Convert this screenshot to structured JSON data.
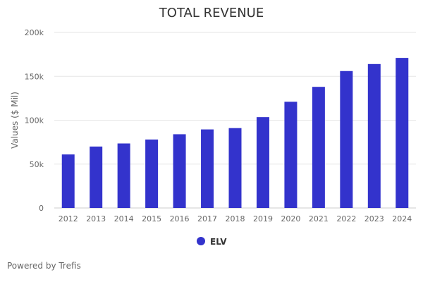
{
  "chart_data": {
    "type": "bar",
    "title": "TOTAL REVENUE",
    "xlabel": "",
    "ylabel": "Values ($ Mil)",
    "categories": [
      "2012",
      "2013",
      "2014",
      "2015",
      "2016",
      "2017",
      "2018",
      "2019",
      "2020",
      "2021",
      "2022",
      "2023",
      "2024"
    ],
    "series": [
      {
        "name": "ELV",
        "color": "#3333cc",
        "values": [
          61000,
          70000,
          73500,
          78000,
          84000,
          89500,
          91000,
          103500,
          121000,
          138000,
          156000,
          164000,
          171000
        ]
      }
    ],
    "ylim": [
      0,
      200000
    ],
    "yticks": [
      0,
      50000,
      100000,
      150000,
      200000
    ],
    "ytick_labels": [
      "0",
      "50k",
      "100k",
      "150k",
      "200k"
    ],
    "grid": true,
    "legend_position": "bottom-center"
  },
  "credits": "Powered by Trefis"
}
